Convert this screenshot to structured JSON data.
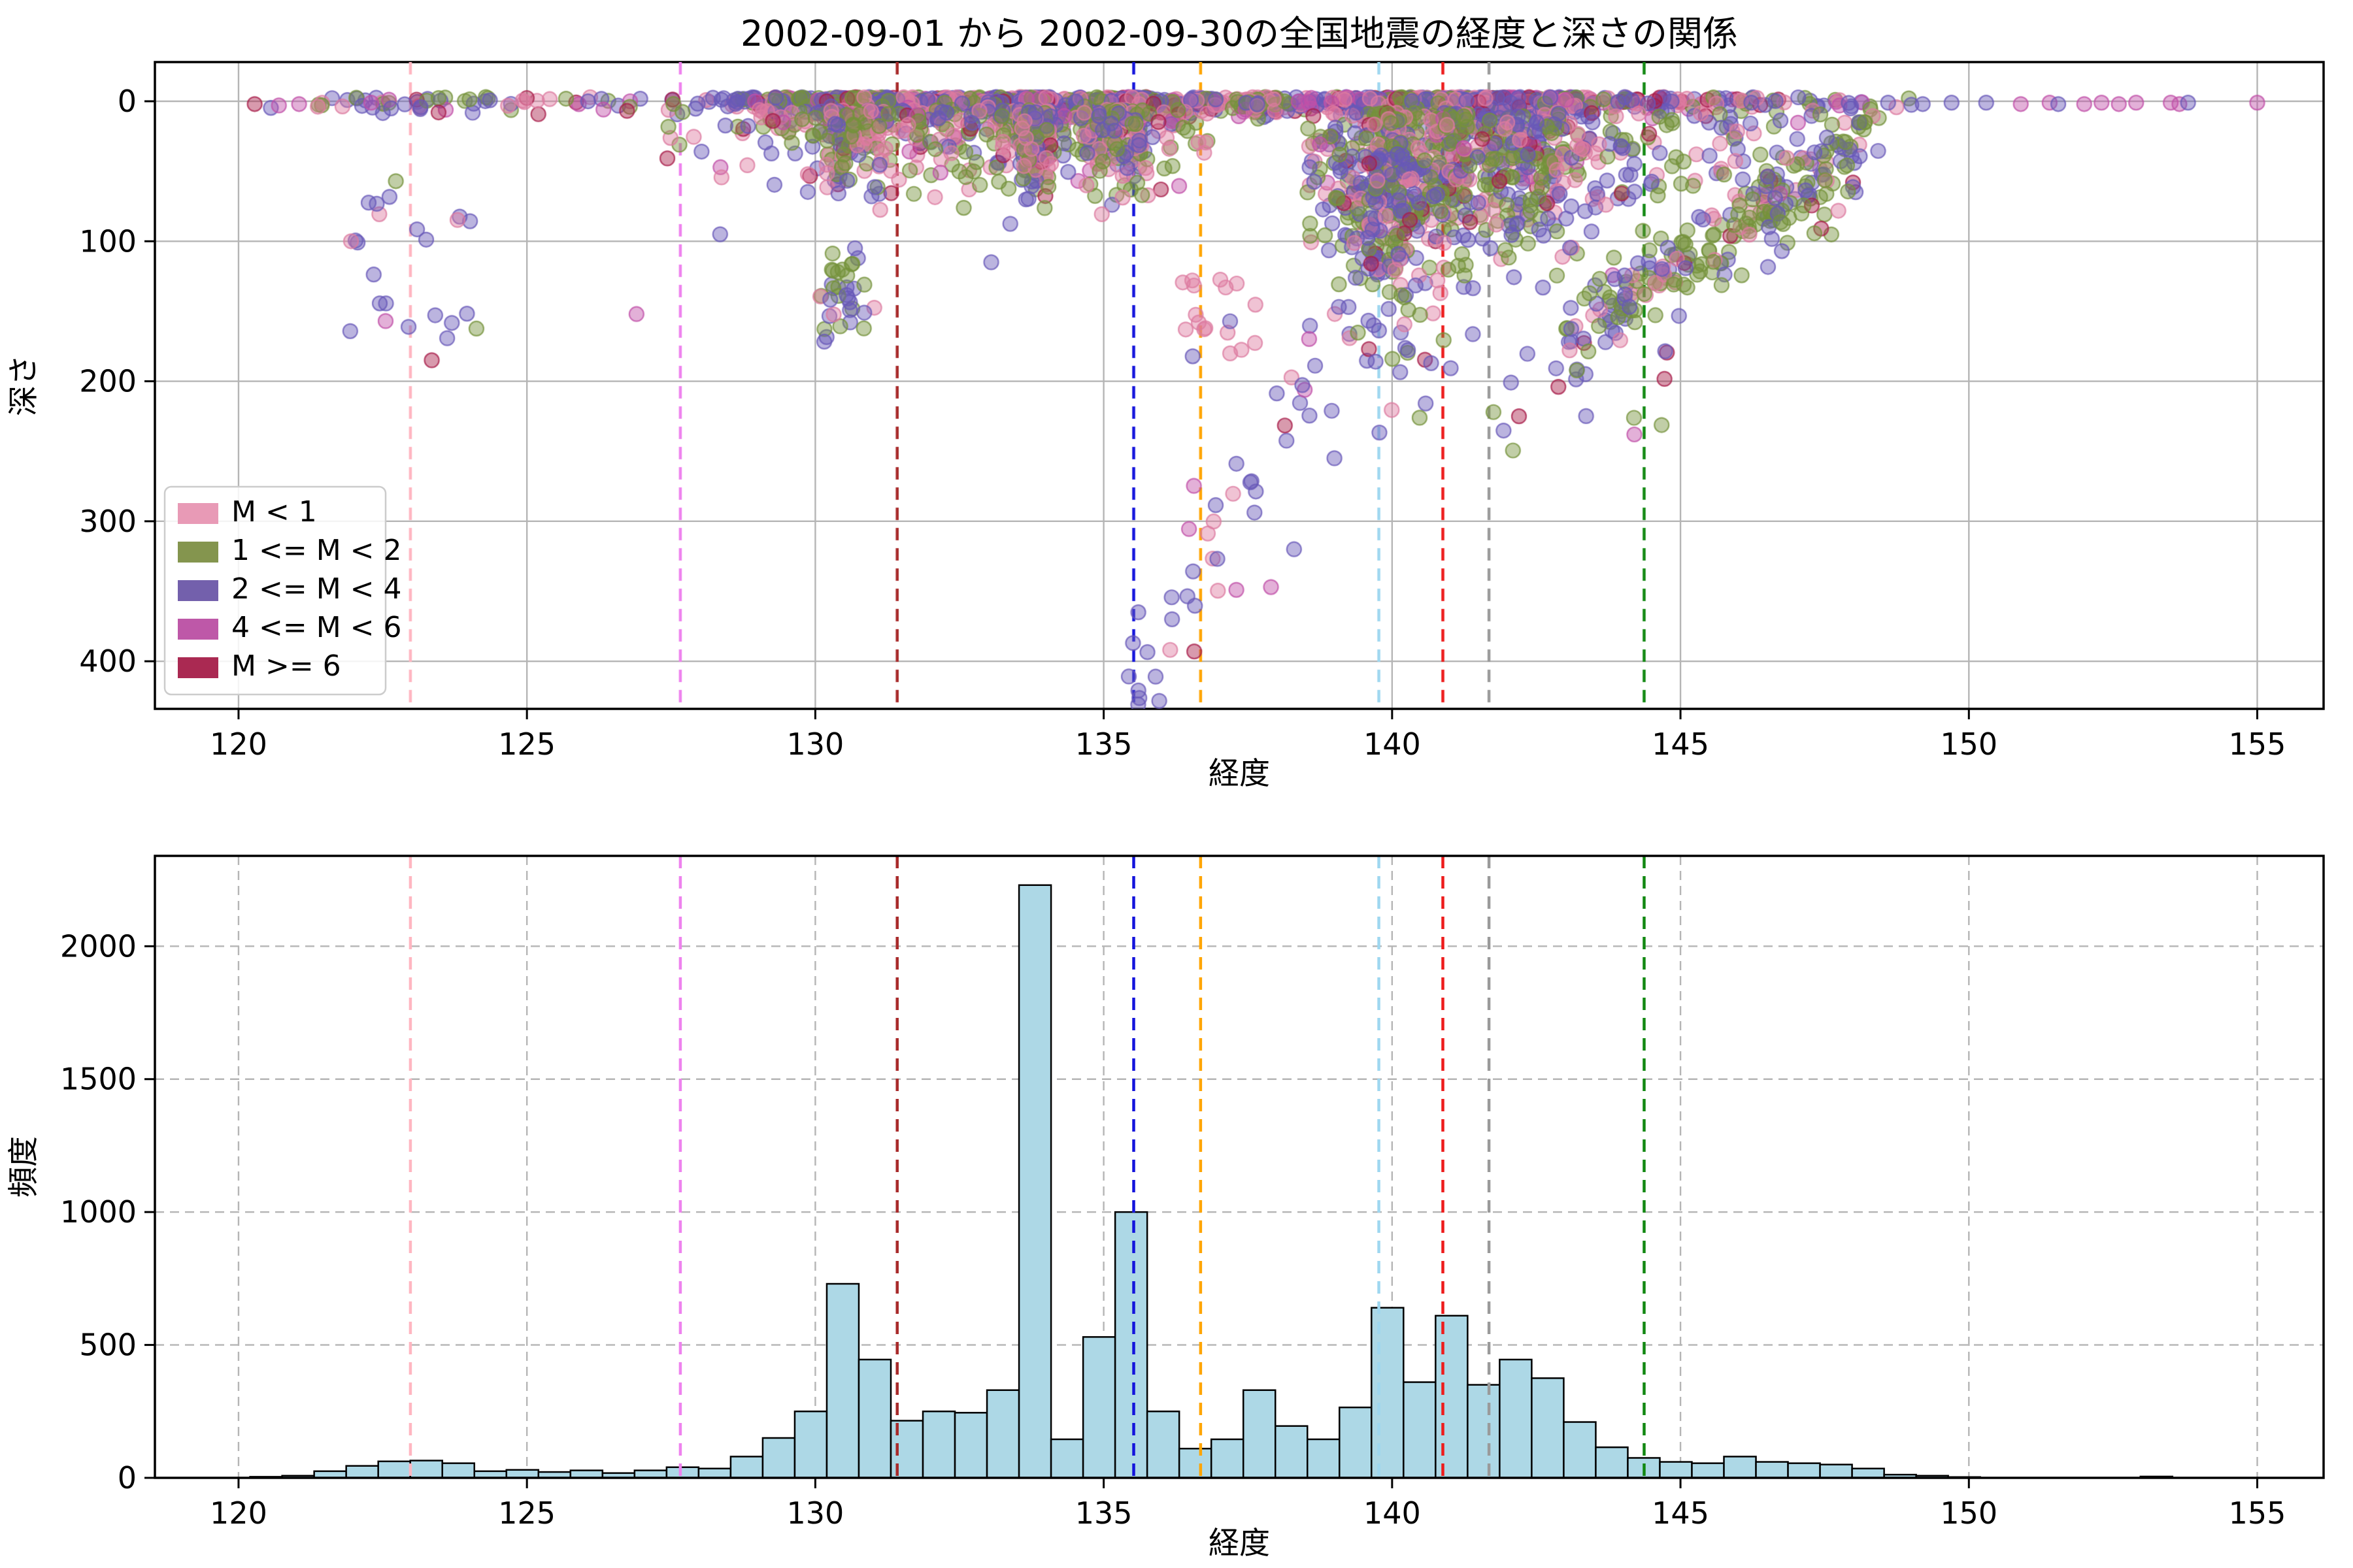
{
  "figure": {
    "title": "2002-09-01 から 2002-09-30の全国地震の経度と深さの関係"
  },
  "chart_data": [
    {
      "type": "scatter",
      "title": "2002-09-01 から 2002-09-30の全国地震の経度と深さの関係",
      "xlabel": "経度",
      "ylabel": "深さ",
      "xlim": [
        118.55,
        156.15
      ],
      "ylim": [
        -28,
        434
      ],
      "y_inverted": true,
      "xticks": [
        120,
        125,
        130,
        135,
        140,
        145,
        150,
        155
      ],
      "yticks": [
        0,
        100,
        200,
        300,
        400
      ],
      "grid": "solid",
      "marker": {
        "radius": 11,
        "fill_alpha": 0.45,
        "edge_alpha": 0.78
      },
      "legend": {
        "position": "lower-left",
        "entries": [
          {
            "label": "M < 1",
            "color": "#e795b2",
            "class": "M1"
          },
          {
            "label": "1 <= M < 2",
            "color": "#7d8f44",
            "class": "M12"
          },
          {
            "label": "2 <= M < 4",
            "color": "#6c57a8",
            "class": "M24"
          },
          {
            "label": "4 <= M < 6",
            "color": "#bb4fa3",
            "class": "M46"
          },
          {
            "label": "M >= 6",
            "color": "#a51e49",
            "class": "M6"
          }
        ]
      },
      "class_colors": {
        "M1": "#dd7ba0",
        "M12": "#75923b",
        "M24": "#6858b8",
        "M46": "#c04fa8",
        "M6": "#a81e4a"
      },
      "vlines": [
        {
          "x": 122.98,
          "color": "#ffb6c1"
        },
        {
          "x": 127.66,
          "color": "#ee82ee"
        },
        {
          "x": 131.42,
          "color": "#a82a2a"
        },
        {
          "x": 135.52,
          "color": "#1414dc"
        },
        {
          "x": 136.68,
          "color": "#ffa500"
        },
        {
          "x": 139.77,
          "color": "#9ed7f0"
        },
        {
          "x": 140.88,
          "color": "#ee1c1c"
        },
        {
          "x": 141.68,
          "color": "#9a9a9a"
        },
        {
          "x": 144.37,
          "color": "#128812"
        }
      ],
      "seed": 20020901,
      "clusters": [
        {
          "name": "shallow-band",
          "count": 2100,
          "lon": {
            "type": "hist"
          },
          "depth": {
            "type": "band",
            "sd": 5.5,
            "shift": -3,
            "max": 16
          },
          "mix": {
            "M1": 0.24,
            "M12": 0.22,
            "M24": 0.36,
            "M46": 0.08,
            "M6": 0.1
          }
        },
        {
          "name": "west-shallow-cloud",
          "count": 780,
          "lon": {
            "type": "hist",
            "bins": [
              13,
              29
            ]
          },
          "depth": {
            "type": "halfnormal",
            "offset": 6,
            "sd": 24,
            "max": 95
          },
          "mix": {
            "M1": 0.34,
            "M12": 0.33,
            "M24": 0.24,
            "M46": 0.03,
            "M6": 0.06
          }
        },
        {
          "name": "east-shallow-cloud",
          "count": 820,
          "lon": {
            "type": "hist",
            "bins": [
              33,
              50
            ]
          },
          "depth": {
            "type": "halfnormal",
            "offset": 8,
            "sd": 45,
            "max": 235
          },
          "mix": {
            "M1": 0.22,
            "M12": 0.4,
            "M24": 0.3,
            "M46": 0.02,
            "M6": 0.06
          }
        },
        {
          "name": "kyushu-deep",
          "count": 34,
          "lon": {
            "type": "normal",
            "mean": 130.45,
            "sd": 0.22,
            "clip": [
              130.0,
              131.1
            ]
          },
          "depth": {
            "type": "normal",
            "mean": 135,
            "sd": 18,
            "clip": [
              105,
              175
            ]
          },
          "mix": {
            "M12": 0.45,
            "M24": 0.45,
            "M1": 0.1
          }
        },
        {
          "name": "ryukyu-deep",
          "count": 22,
          "lon": {
            "type": "uniform",
            "range": [
              121.8,
              124.3
            ]
          },
          "depth": {
            "type": "uniform",
            "range": [
              55,
              170
            ]
          },
          "mix": {
            "M24": 0.75,
            "M12": 0.1,
            "M1": 0.15
          }
        },
        {
          "name": "nankai-slab",
          "count": 42,
          "type": "slab",
          "lon0": 135.55,
          "dlon": 3.4,
          "lon_jitter": 0.22,
          "depth0": 408,
          "ddepth": -235,
          "depth_jitter": 22,
          "mix": {
            "M24": 0.72,
            "M1": 0.18,
            "M46": 0.06,
            "M6": 0.04
          }
        },
        {
          "name": "kanto-deep",
          "count": 190,
          "lon": {
            "type": "normal",
            "mean": 139.95,
            "sd": 0.5,
            "clip": [
              138.6,
              141.4
            ]
          },
          "depth": {
            "type": "halfnormal",
            "offset": 35,
            "sd": 70,
            "max": 265
          },
          "mix": {
            "M24": 0.45,
            "M12": 0.28,
            "M1": 0.22,
            "M6": 0.05
          }
        },
        {
          "name": "east-arc",
          "count": 210,
          "lon": {
            "type": "uniform",
            "range": [
              143.0,
              148.2
            ]
          },
          "depth": {
            "type": "lonlinear",
            "base": 32,
            "slope": 26,
            "ref": 148.2,
            "jitter": 16,
            "clip": [
              15,
              210
            ]
          },
          "mix": {
            "M12": 0.5,
            "M24": 0.32,
            "M1": 0.12,
            "M46": 0.02,
            "M6": 0.04
          }
        },
        {
          "name": "east-deep-sparse",
          "count": 20,
          "lon": {
            "type": "uniform",
            "range": [
              140.2,
              144.8
            ]
          },
          "depth": {
            "type": "uniform",
            "range": [
              170,
              255
            ]
          },
          "mix": {
            "M24": 0.65,
            "M12": 0.3,
            "M6": 0.05
          }
        },
        {
          "name": "kii-mid-pink",
          "count": 18,
          "lon": {
            "type": "uniform",
            "range": [
              136.3,
              137.8
            ]
          },
          "depth": {
            "type": "uniform",
            "range": [
              120,
              185
            ]
          },
          "mix": {
            "M1": 0.85,
            "M24": 0.15
          }
        }
      ],
      "extra_points": [
        [
          120.28,
          2,
          "M6"
        ],
        [
          120.7,
          3,
          "M46"
        ],
        [
          121.05,
          2,
          "M46"
        ],
        [
          122.3,
          1,
          "M46"
        ],
        [
          121.95,
          100,
          "M1"
        ],
        [
          122.55,
          157,
          "M46"
        ],
        [
          123.35,
          185,
          "M6"
        ],
        [
          126.9,
          152,
          "M46"
        ],
        [
          128.35,
          95,
          "M24"
        ],
        [
          133.05,
          115,
          "M24"
        ],
        [
          130.85,
          131,
          "M12"
        ],
        [
          135.6,
          365,
          "M24"
        ],
        [
          135.9,
          411,
          "M24"
        ],
        [
          136.57,
          393,
          "M6"
        ],
        [
          137.3,
          349,
          "M46"
        ],
        [
          137.9,
          347,
          "M46"
        ],
        [
          138.3,
          320,
          "M24"
        ],
        [
          139.0,
          255,
          "M24"
        ],
        [
          142.2,
          225,
          "M6"
        ],
        [
          144.2,
          238,
          "M46"
        ],
        [
          148.6,
          1,
          "M24"
        ],
        [
          149.2,
          2,
          "M24"
        ],
        [
          149.7,
          1,
          "M24"
        ],
        [
          150.3,
          1,
          "M24"
        ],
        [
          150.9,
          2,
          "M46"
        ],
        [
          151.4,
          1,
          "M46"
        ],
        [
          151.55,
          2,
          "M24"
        ],
        [
          152.0,
          2,
          "M46"
        ],
        [
          152.3,
          1,
          "M46"
        ],
        [
          152.6,
          2,
          "M46"
        ],
        [
          152.9,
          1,
          "M46"
        ],
        [
          153.5,
          1,
          "M46"
        ],
        [
          153.65,
          2,
          "M46"
        ],
        [
          153.8,
          1,
          "M24"
        ],
        [
          155.0,
          1,
          "M46"
        ]
      ]
    },
    {
      "type": "histogram",
      "xlabel": "経度",
      "ylabel": "頻度",
      "xlim": [
        118.55,
        156.15
      ],
      "ylim": [
        0,
        2340
      ],
      "xticks": [
        120,
        125,
        130,
        135,
        140,
        145,
        150,
        155
      ],
      "yticks": [
        0,
        500,
        1000,
        1500,
        2000
      ],
      "grid": "dashed",
      "bar_color": "#add8e6",
      "bar_edge_color": "#000000",
      "bin_start": 120.2,
      "bin_width": 0.5555,
      "values": [
        4,
        8,
        25,
        45,
        62,
        65,
        55,
        25,
        30,
        22,
        28,
        18,
        28,
        40,
        35,
        80,
        150,
        250,
        730,
        445,
        215,
        250,
        245,
        330,
        2230,
        145,
        530,
        1000,
        250,
        110,
        145,
        330,
        195,
        145,
        265,
        640,
        360,
        610,
        350,
        445,
        375,
        210,
        115,
        75,
        60,
        55,
        80,
        60,
        55,
        50,
        35,
        12,
        8,
        3,
        0,
        0,
        0,
        0,
        0,
        5
      ],
      "vlines": [
        {
          "x": 122.98,
          "color": "#ffb6c1"
        },
        {
          "x": 127.66,
          "color": "#ee82ee"
        },
        {
          "x": 131.42,
          "color": "#a82a2a"
        },
        {
          "x": 135.52,
          "color": "#1414dc"
        },
        {
          "x": 136.68,
          "color": "#ffa500"
        },
        {
          "x": 139.77,
          "color": "#9ed7f0"
        },
        {
          "x": 140.88,
          "color": "#ee1c1c"
        },
        {
          "x": 141.68,
          "color": "#9a9a9a"
        },
        {
          "x": 144.37,
          "color": "#128812"
        }
      ]
    }
  ],
  "colors": {
    "grid": "#b5b5b5",
    "spine": "#000000",
    "background": "#ffffff",
    "legend_border": "#cccccc"
  }
}
